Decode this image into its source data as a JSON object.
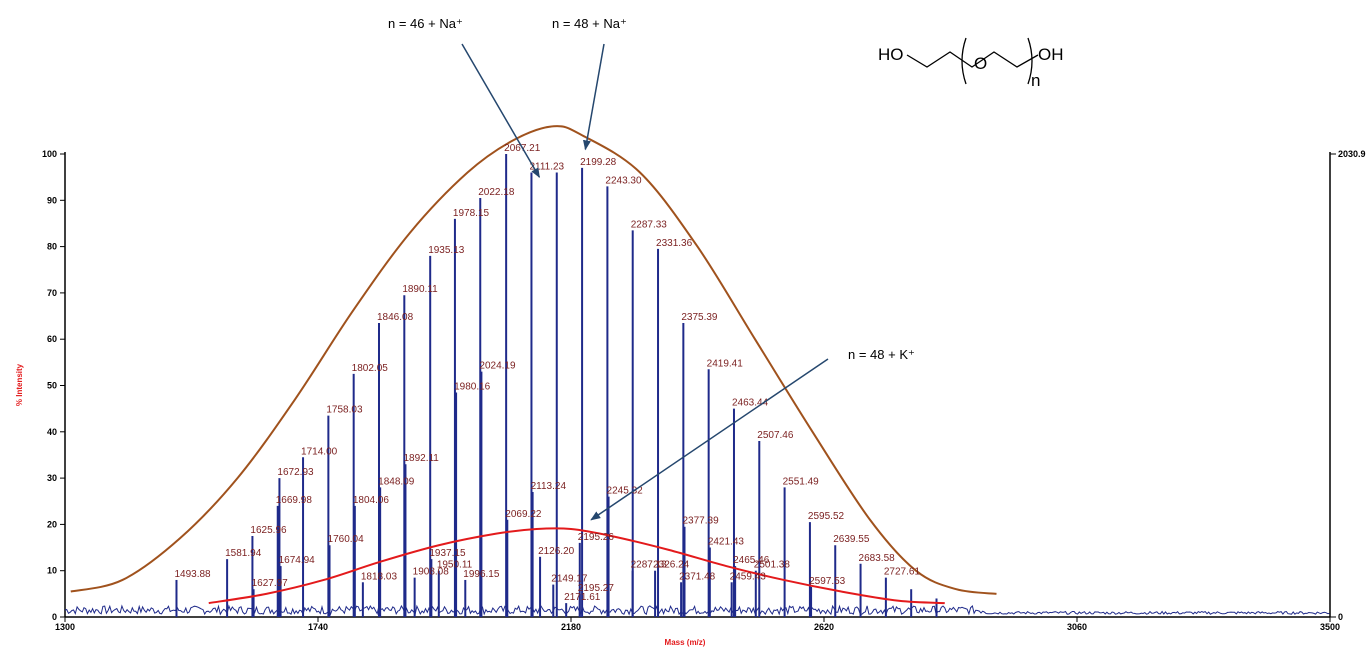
{
  "chart_data": {
    "type": "line",
    "xlabel": "Mass (m/z)",
    "ylabel": "% Intensity",
    "xlim": [
      1300,
      3500
    ],
    "ylim": [
      0,
      100
    ],
    "x_ticks": [
      "1300",
      "1740",
      "2180",
      "2620",
      "3060",
      "3500"
    ],
    "y_ticks": [
      "0",
      "10",
      "20",
      "30",
      "40",
      "50",
      "60",
      "70",
      "80",
      "90",
      "100"
    ],
    "right_axis_max_label": "2030.9",
    "right_axis_min_label": "0",
    "series": [
      {
        "peaks": [
          {
            "x": 1493.88,
            "y": 8,
            "label": "1493.88"
          },
          {
            "x": 1581.94,
            "y": 12.5,
            "label": "1581.94"
          },
          {
            "x": 1625.96,
            "y": 17.5,
            "label": "1625.96"
          },
          {
            "x": 1669.98,
            "y": 24,
            "label": "1669.98"
          },
          {
            "x": 1672.93,
            "y": 30,
            "label": "1672.93"
          },
          {
            "x": 1714.0,
            "y": 34.5,
            "label": "1714.00"
          },
          {
            "x": 1758.03,
            "y": 43.5,
            "label": "1758.03"
          },
          {
            "x": 1802.05,
            "y": 52.5,
            "label": "1802.05"
          },
          {
            "x": 1846.08,
            "y": 63.5,
            "label": "1846.08"
          },
          {
            "x": 1890.11,
            "y": 69.5,
            "label": "1890.11"
          },
          {
            "x": 1935.13,
            "y": 78,
            "label": "1935.13"
          },
          {
            "x": 1978.15,
            "y": 86,
            "label": "1978.15"
          },
          {
            "x": 2022.18,
            "y": 90.5,
            "label": "2022.18"
          },
          {
            "x": 2067.21,
            "y": 100,
            "label": "2067.21"
          },
          {
            "x": 2111.23,
            "y": 96,
            "label": "2111.23"
          },
          {
            "x": 2155.24,
            "y": 96,
            "label": ""
          },
          {
            "x": 2199.28,
            "y": 97,
            "label": "2199.28"
          },
          {
            "x": 2243.3,
            "y": 93,
            "label": "2243.30"
          },
          {
            "x": 2287.33,
            "y": 83.5,
            "label": "2287.33"
          },
          {
            "x": 2331.36,
            "y": 79.5,
            "label": "2331.36"
          },
          {
            "x": 2375.39,
            "y": 63.5,
            "label": "2375.39"
          },
          {
            "x": 2419.41,
            "y": 53.5,
            "label": "2419.41"
          },
          {
            "x": 2463.44,
            "y": 45,
            "label": "2463.44"
          },
          {
            "x": 2507.46,
            "y": 38,
            "label": "2507.46"
          },
          {
            "x": 2551.49,
            "y": 28,
            "label": "2551.49"
          },
          {
            "x": 2595.52,
            "y": 20.5,
            "label": "2595.52"
          },
          {
            "x": 2639.55,
            "y": 15.5,
            "label": "2639.55"
          },
          {
            "x": 2683.58,
            "y": 11.5,
            "label": "2683.58"
          },
          {
            "x": 2727.61,
            "y": 8.5,
            "label": "2727.61"
          },
          {
            "x": 2771.63,
            "y": 6,
            "label": ""
          },
          {
            "x": 2815.66,
            "y": 4,
            "label": ""
          },
          {
            "x": 1627.97,
            "y": 6,
            "label": "1627.97"
          },
          {
            "x": 1674.94,
            "y": 11,
            "label": "1674.94"
          },
          {
            "x": 1760.04,
            "y": 15.5,
            "label": "1760.04"
          },
          {
            "x": 1804.06,
            "y": 24,
            "label": "1804.06"
          },
          {
            "x": 1848.09,
            "y": 28,
            "label": "1848.09"
          },
          {
            "x": 1892.11,
            "y": 33,
            "label": "1892.11"
          },
          {
            "x": 1980.16,
            "y": 48.5,
            "label": "1980.16"
          },
          {
            "x": 2024.19,
            "y": 53,
            "label": "2024.19"
          },
          {
            "x": 2069.22,
            "y": 21,
            "label": "2069.22"
          },
          {
            "x": 2113.24,
            "y": 27,
            "label": "2113.24"
          },
          {
            "x": 2245.32,
            "y": 26,
            "label": "2245.32"
          },
          {
            "x": 2377.39,
            "y": 19.5,
            "label": "2377.39"
          },
          {
            "x": 2421.43,
            "y": 15,
            "label": "2421.43"
          },
          {
            "x": 2465.46,
            "y": 11,
            "label": "2465.46"
          },
          {
            "x": 1818.03,
            "y": 7.5,
            "label": "1818.03"
          },
          {
            "x": 1908.08,
            "y": 8.5,
            "label": "1908.08"
          },
          {
            "x": 1937.15,
            "y": 12.5,
            "label": "1937.15"
          },
          {
            "x": 1950.11,
            "y": 10,
            "label": "1950.11"
          },
          {
            "x": 1996.15,
            "y": 8,
            "label": "1996.15"
          },
          {
            "x": 2126.2,
            "y": 13,
            "label": "2126.20"
          },
          {
            "x": 2149.17,
            "y": 7,
            "label": "2149.17"
          },
          {
            "x": 2195.27,
            "y": 5,
            "label": "2195.27"
          },
          {
            "x": 2171.61,
            "y": 3,
            "label": "2171.61"
          },
          {
            "x": 2195.26,
            "y": 16,
            "label": "2195.26"
          },
          {
            "x": 2287.13,
            "y": 10,
            "label": "2287.13"
          },
          {
            "x": 2326.24,
            "y": 10,
            "label": "2326.24"
          },
          {
            "x": 2371.48,
            "y": 7.5,
            "label": "2371.48"
          },
          {
            "x": 2459.43,
            "y": 7.5,
            "label": "2459.43"
          },
          {
            "x": 2501.38,
            "y": 10,
            "label": "2501.38"
          },
          {
            "x": 2597.53,
            "y": 6.5,
            "label": "2597.53"
          }
        ]
      }
    ],
    "envelopes": [
      {
        "color": "#a0521d",
        "points": [
          [
            1310,
            5.5
          ],
          [
            1400,
            8
          ],
          [
            1500,
            17
          ],
          [
            1600,
            30
          ],
          [
            1700,
            47
          ],
          [
            1800,
            66
          ],
          [
            1900,
            83
          ],
          [
            2000,
            96
          ],
          [
            2080,
            103
          ],
          [
            2150,
            106
          ],
          [
            2200,
            104
          ],
          [
            2300,
            96
          ],
          [
            2400,
            80
          ],
          [
            2500,
            60
          ],
          [
            2600,
            40
          ],
          [
            2700,
            21
          ],
          [
            2780,
            10
          ],
          [
            2850,
            6
          ],
          [
            2920,
            5
          ]
        ]
      },
      {
        "color": "#e31a1c",
        "points": [
          [
            1550,
            3
          ],
          [
            1650,
            5
          ],
          [
            1750,
            8
          ],
          [
            1850,
            12
          ],
          [
            1950,
            15.5
          ],
          [
            2050,
            18
          ],
          [
            2120,
            19
          ],
          [
            2180,
            19
          ],
          [
            2250,
            17.5
          ],
          [
            2350,
            14.5
          ],
          [
            2450,
            11
          ],
          [
            2550,
            8
          ],
          [
            2650,
            5.5
          ],
          [
            2750,
            3.5
          ],
          [
            2830,
            3
          ]
        ]
      }
    ],
    "annotations": [
      {
        "text": "n = 46 + Na⁺",
        "target_x": 2125,
        "target_y": 95
      },
      {
        "text": "n = 48 + Na⁺",
        "target_x": 2205,
        "target_y": 101
      },
      {
        "text": "n = 48 + K⁺",
        "target_x": 2215,
        "target_y": 21
      }
    ],
    "structure": {
      "left": "HO",
      "middle": "O",
      "right": "OH",
      "repeat": "n"
    }
  }
}
